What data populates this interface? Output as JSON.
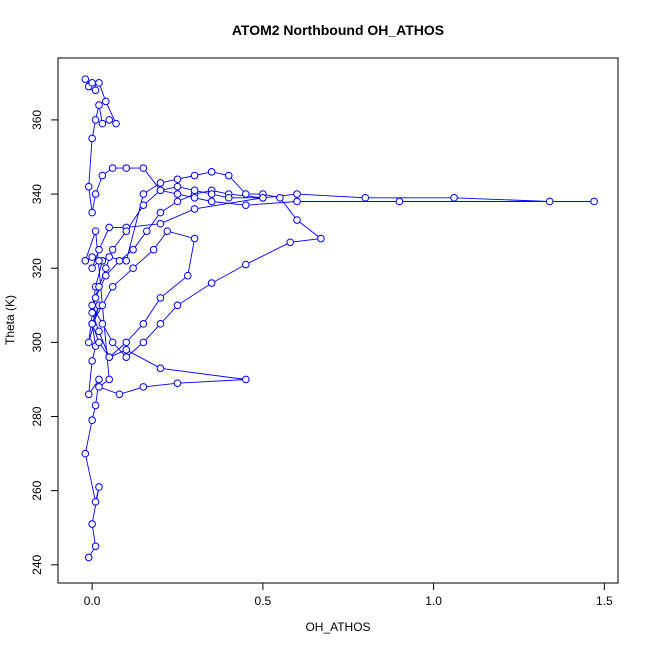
{
  "chart_data": {
    "type": "scatter-line",
    "title": "ATOM2 Northbound OH_ATHOS",
    "xlabel": "OH_ATHOS",
    "ylabel": "Theta (K)",
    "color": "#0000ff",
    "xlim": [
      -0.1,
      1.54
    ],
    "ylim": [
      235.1,
      376.7
    ],
    "xticks": [
      {
        "value": 0,
        "label": "0.0"
      },
      0.5,
      {
        "value": 1,
        "label": "1.0"
      },
      1.5
    ],
    "yticks": [
      240,
      260,
      280,
      300,
      320,
      340,
      360
    ],
    "x": [
      -0.01,
      0.01,
      0.0,
      0.02,
      0.01,
      -0.02,
      0.0,
      0.01,
      0.02,
      -0.01,
      0.0,
      0.01,
      0.0,
      0.02,
      -0.01,
      0.01,
      0.03,
      0.0,
      -0.02,
      0.01,
      0.05,
      0.02,
      0.08,
      0.15,
      0.25,
      0.45,
      0.2,
      0.1,
      0.05,
      0.02,
      0.0,
      0.03,
      0.06,
      0.12,
      0.18,
      0.22,
      0.3,
      0.28,
      0.2,
      0.15,
      0.1,
      0.05,
      0.02,
      0.0,
      0.01,
      0.04,
      0.08,
      0.12,
      0.16,
      0.2,
      0.25,
      0.3,
      0.35,
      0.4,
      0.5,
      0.3,
      0.2,
      0.1,
      0.05,
      0.02,
      0.0,
      0.02,
      0.05,
      0.1,
      0.15,
      0.2,
      0.25,
      0.3,
      0.35,
      0.4,
      0.45,
      0.5,
      0.55,
      0.6,
      0.67,
      0.58,
      0.45,
      0.35,
      0.25,
      0.2,
      0.15,
      0.1,
      0.06,
      0.03,
      0.0,
      0.02,
      0.04,
      0.06,
      0.1,
      0.15,
      0.2,
      0.25,
      0.3,
      0.35,
      0.4,
      0.5,
      0.6,
      0.8,
      1.06,
      1.34,
      1.47,
      0.9,
      0.6,
      0.45,
      0.35,
      0.3,
      0.25,
      0.2,
      0.15,
      0.1,
      0.06,
      0.03,
      0.01,
      0.0,
      -0.01,
      0.0,
      0.01,
      0.02,
      0.03,
      0.05,
      0.07,
      0.04,
      0.02,
      0.0,
      -0.02,
      -0.01,
      0.01,
      0.0
    ],
    "y": [
      242,
      245,
      251,
      261,
      257,
      270,
      279,
      283,
      290,
      286,
      295,
      299,
      305,
      310,
      300,
      315,
      322,
      323,
      322,
      330,
      290,
      288,
      286,
      288,
      289,
      290,
      293,
      298,
      296,
      300,
      305,
      310,
      315,
      320,
      325,
      330,
      328,
      318,
      312,
      305,
      300,
      296,
      303,
      308,
      312,
      318,
      322,
      325,
      330,
      335,
      338,
      340,
      341,
      340,
      339,
      336,
      332,
      331,
      331,
      325,
      320,
      322,
      323,
      322,
      340,
      343,
      344,
      345,
      346,
      345,
      340,
      340,
      339,
      333,
      328,
      327,
      321,
      316,
      310,
      305,
      300,
      296,
      300,
      305,
      310,
      315,
      320,
      325,
      330,
      337,
      341,
      342,
      341,
      340,
      339,
      339,
      340,
      339,
      339,
      338,
      338,
      338,
      338,
      337,
      338,
      339,
      340,
      341,
      347,
      347,
      347,
      345,
      340,
      335,
      342,
      355,
      360,
      364,
      359,
      360,
      359,
      365,
      370,
      369,
      371,
      369,
      368,
      370
    ]
  }
}
